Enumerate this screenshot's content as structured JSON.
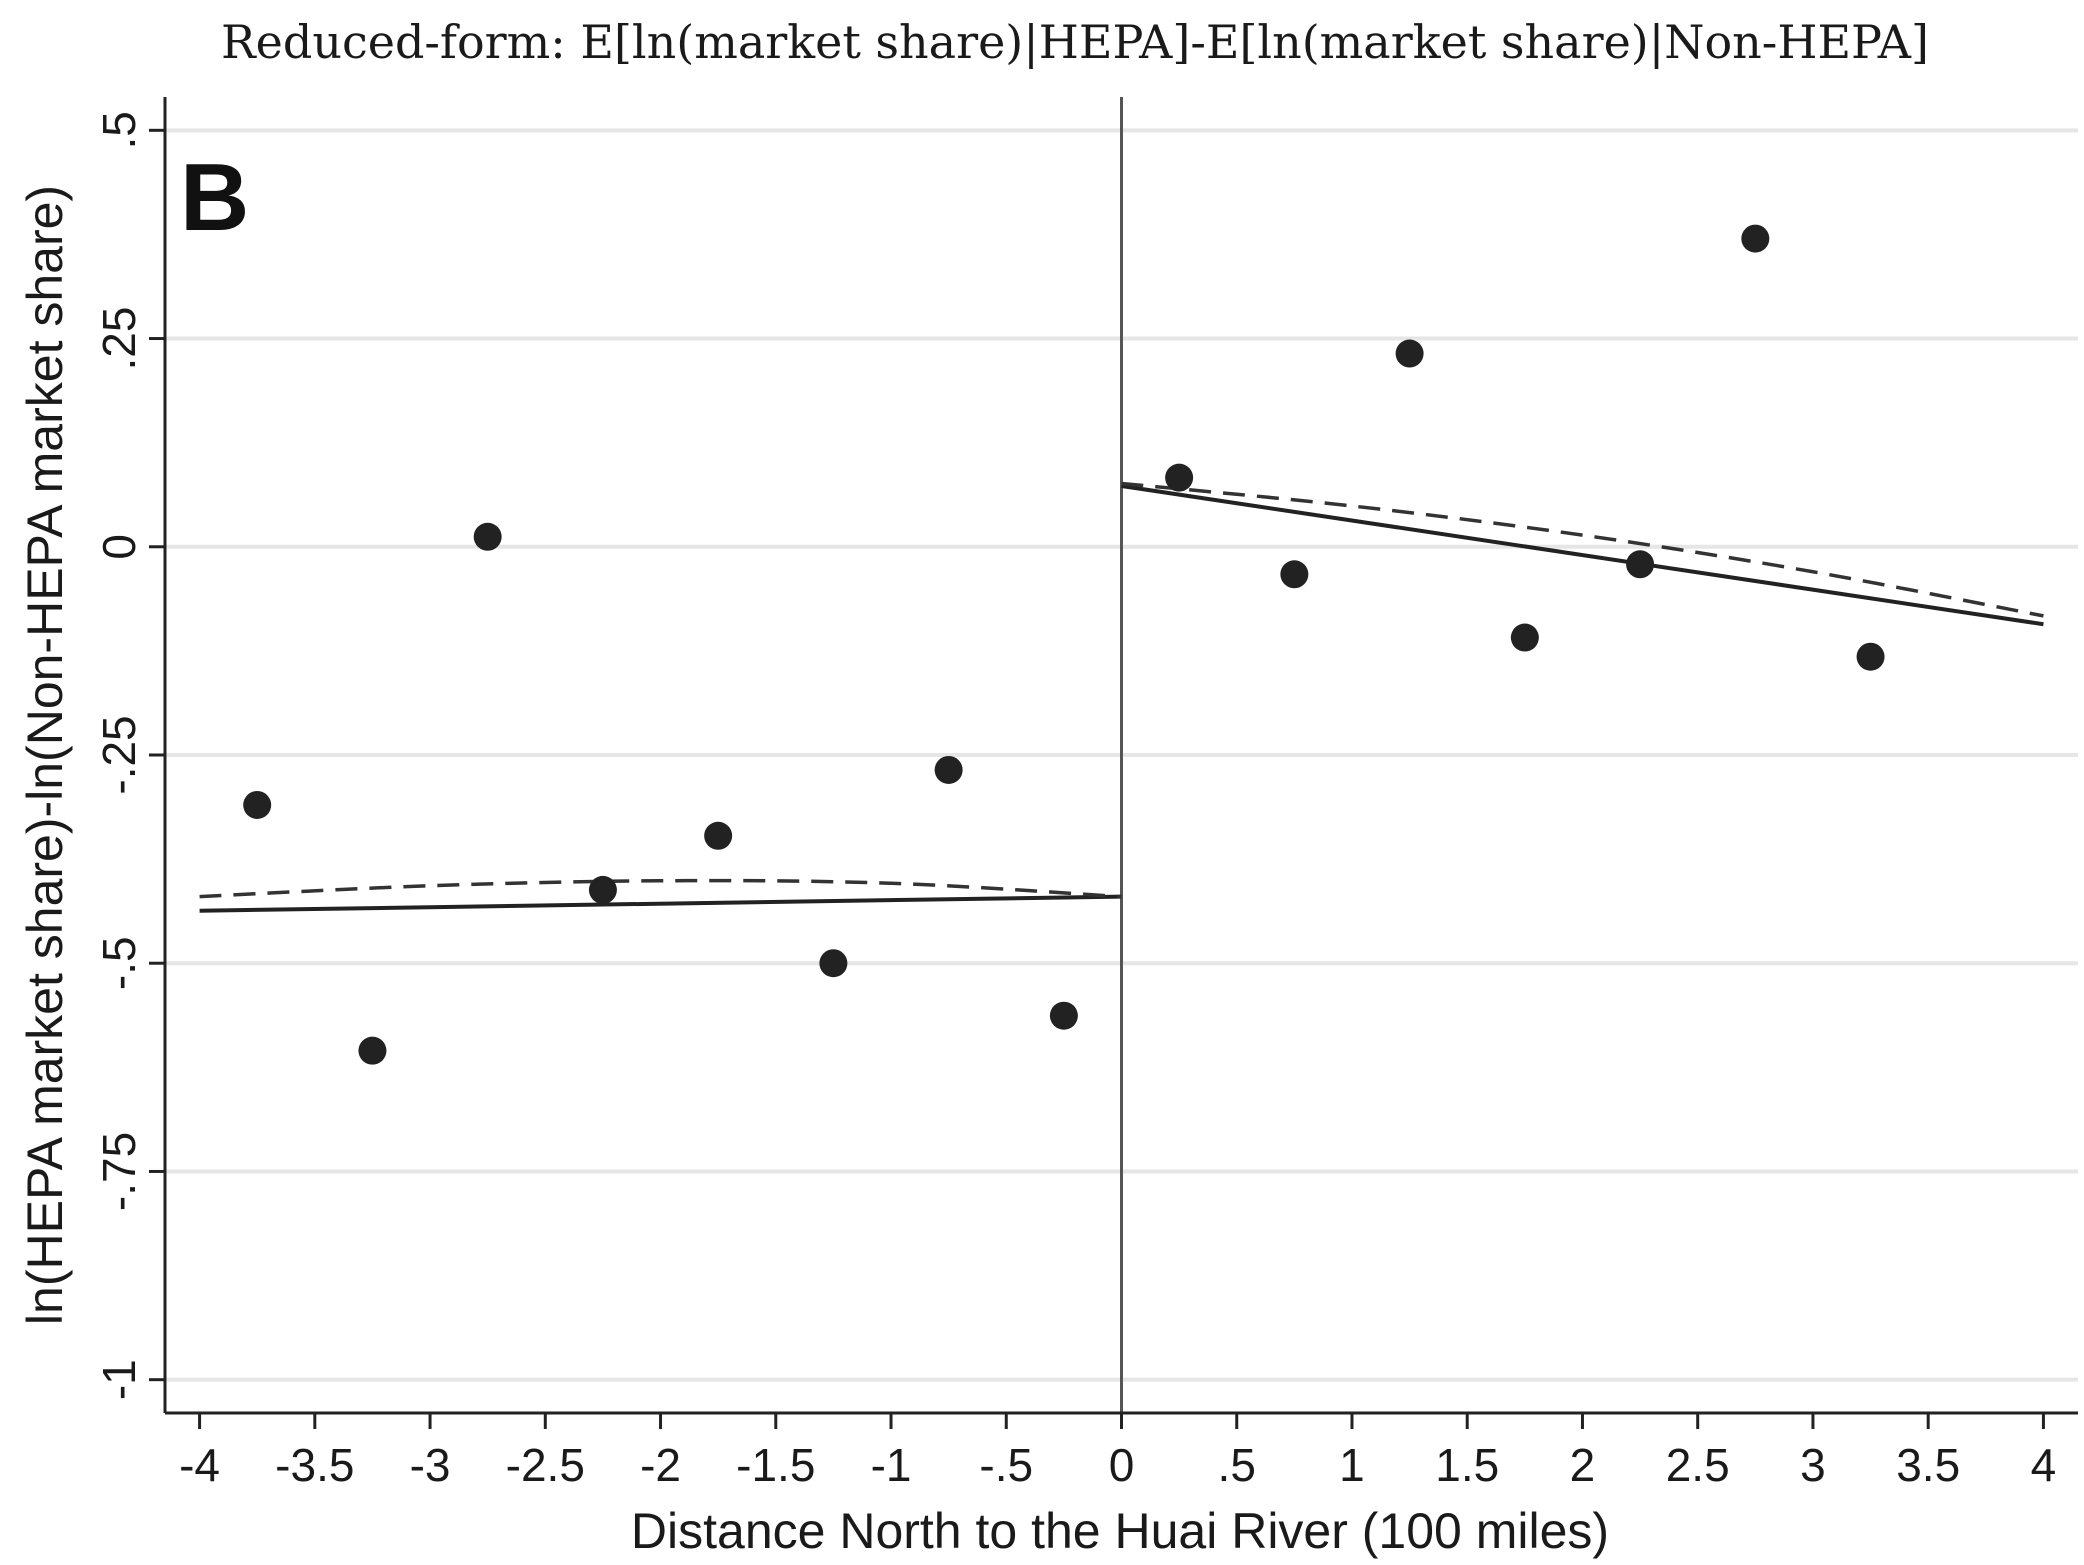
{
  "chart_data": {
    "type": "scatter",
    "title": "Reduced-form: E[ln(market share)|HEPA]-E[ln(market share)|Non-HEPA]",
    "panel_label": "B",
    "xlabel": "Distance North to the Huai River (100 miles)",
    "ylabel": "ln(HEPA market share)-ln(Non-HEPA market share)",
    "xlim": [
      -4.15,
      4.15
    ],
    "ylim": [
      -1.04,
      0.54
    ],
    "x_ticks": [
      -4,
      -3.5,
      -3,
      -2.5,
      -2,
      -1.5,
      -1,
      -0.5,
      0,
      0.5,
      1,
      1.5,
      2,
      2.5,
      3,
      3.5,
      4
    ],
    "x_tick_labels": [
      "-4",
      "-3.5",
      "-3",
      "-2.5",
      "-2",
      "-1.5",
      "-1",
      "-.5",
      "0",
      ".5",
      "1",
      "1.5",
      "2",
      "2.5",
      "3",
      "3.5",
      "4"
    ],
    "y_ticks": [
      0.5,
      0.25,
      0,
      -0.25,
      -0.5,
      -0.75,
      -1
    ],
    "y_tick_labels": [
      ".5",
      ".25",
      "0",
      "-.25",
      "-.5",
      "-.75",
      "-1"
    ],
    "grid": true,
    "cutoff_x": 0,
    "points": [
      {
        "x": -3.75,
        "y": -0.31
      },
      {
        "x": -3.25,
        "y": -0.605
      },
      {
        "x": -2.75,
        "y": 0.012
      },
      {
        "x": -2.25,
        "y": -0.412
      },
      {
        "x": -1.75,
        "y": -0.347
      },
      {
        "x": -1.25,
        "y": -0.5
      },
      {
        "x": -0.75,
        "y": -0.268
      },
      {
        "x": -0.25,
        "y": -0.563
      },
      {
        "x": 0.25,
        "y": 0.083
      },
      {
        "x": 0.75,
        "y": -0.033
      },
      {
        "x": 1.25,
        "y": 0.232
      },
      {
        "x": 1.75,
        "y": -0.109
      },
      {
        "x": 2.25,
        "y": -0.021
      },
      {
        "x": 2.75,
        "y": 0.37
      },
      {
        "x": 3.25,
        "y": -0.132
      }
    ],
    "fits": [
      {
        "style": "solid",
        "x": [
          -4,
          0
        ],
        "y": [
          -0.437,
          -0.42
        ]
      },
      {
        "style": "solid",
        "x": [
          0,
          4
        ],
        "y": [
          0.073,
          -0.093
        ]
      },
      {
        "style": "dashed",
        "x": [
          -4,
          -3,
          -2,
          -1,
          0
        ],
        "y": [
          -0.42,
          -0.407,
          -0.401,
          -0.404,
          -0.42
        ]
      },
      {
        "style": "dashed",
        "x": [
          0,
          1,
          2,
          3,
          4
        ],
        "y": [
          0.076,
          0.049,
          0.014,
          -0.03,
          -0.083
        ]
      }
    ]
  }
}
